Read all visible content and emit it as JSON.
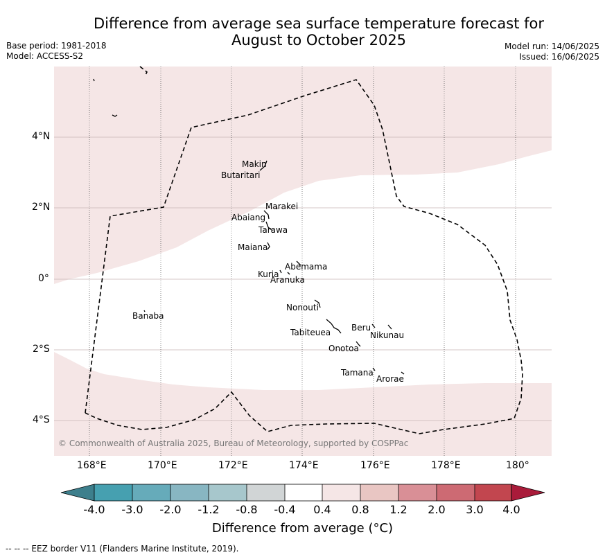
{
  "header": {
    "title_line1": "Difference from average sea surface temperature forecast for",
    "title_line2": "August to October 2025",
    "base_period": "Base period: 1981-2018",
    "model": "Model: ACCESS-S2",
    "model_run": "Model run: 14/06/2025",
    "issued": "Issued: 16/06/2025"
  },
  "map": {
    "lat_labels": [
      "4°N",
      "2°N",
      "0°",
      "2°S",
      "4°S"
    ],
    "lon_labels": [
      "168°E",
      "170°E",
      "172°E",
      "174°E",
      "176°E",
      "178°E",
      "180°"
    ],
    "islands": [
      "Makin",
      "Butaritari",
      "Marakei",
      "Abaiang",
      "Tarawa",
      "Maiana",
      "Abemama",
      "Kuria",
      "Aranuka",
      "Nonouti",
      "Banaba",
      "Tabiteuea",
      "Beru",
      "Nikunau",
      "Onotoa",
      "Tamana",
      "Arorae"
    ],
    "copyright": "© Commonwealth of Australia 2025, Bureau of Meteorology, supported by COSPPac",
    "colors": {
      "warm_band": "#f5e6e6",
      "neutral": "#ffffff"
    }
  },
  "colorbar": {
    "ticks": [
      "-4.0",
      "-3.0",
      "-2.0",
      "-1.2",
      "-0.8",
      "-0.4",
      "0.4",
      "0.8",
      "1.2",
      "2.0",
      "3.0",
      "4.0"
    ],
    "colors": [
      "#3d7f8c",
      "#46a0b0",
      "#66abba",
      "#88b6c2",
      "#a7c7cc",
      "#d1d5d6",
      "#ffffff",
      "#f5e6e6",
      "#e9c6c3",
      "#d98f96",
      "#cd6a73",
      "#c2464f",
      "#a91b3a"
    ],
    "title": "Difference from average (°C)"
  },
  "footer": {
    "legend_text": "--  --  -- EEZ border V11 (Flanders Marine Institute, 2019)."
  }
}
